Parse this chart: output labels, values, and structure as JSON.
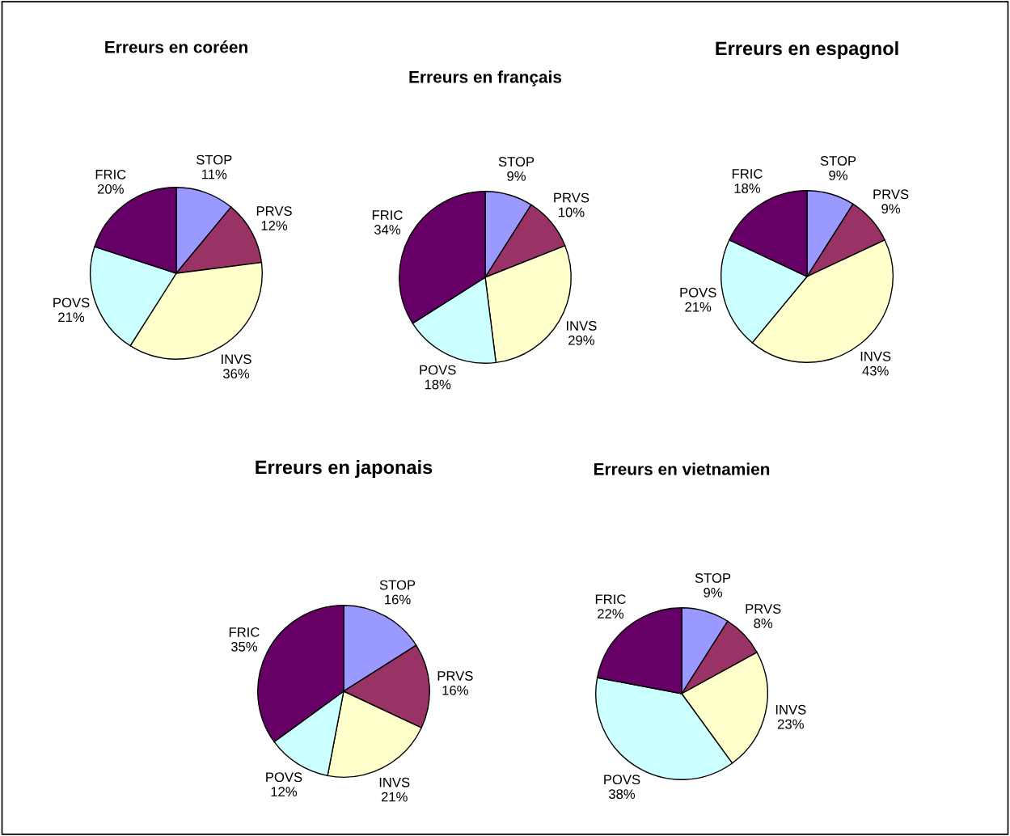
{
  "chart_data": [
    {
      "type": "pie",
      "title": "Erreurs en coréen",
      "categories": [
        "STOP",
        "PRVS",
        "INVS",
        "POVS",
        "FRIC"
      ],
      "values": [
        11,
        12,
        36,
        21,
        20
      ],
      "value_labels": [
        "11%",
        "12%",
        "36%",
        "21%",
        "20%"
      ],
      "colors": [
        "#9999ff",
        "#993366",
        "#ffffcc",
        "#ccffff",
        "#660066"
      ]
    },
    {
      "type": "pie",
      "title": "Erreurs en français",
      "categories": [
        "STOP",
        "PRVS",
        "INVS",
        "POVS",
        "FRIC"
      ],
      "values": [
        9,
        10,
        29,
        18,
        34
      ],
      "value_labels": [
        "9%",
        "10%",
        "29%",
        "18%",
        "34%"
      ],
      "colors": [
        "#9999ff",
        "#993366",
        "#ffffcc",
        "#ccffff",
        "#660066"
      ]
    },
    {
      "type": "pie",
      "title": "Erreurs en espagnol",
      "categories": [
        "STOP",
        "PRVS",
        "INVS",
        "POVS",
        "FRIC"
      ],
      "values": [
        9,
        9,
        43,
        21,
        18
      ],
      "value_labels": [
        "9%",
        "9%",
        "43%",
        "21%",
        "18%"
      ],
      "colors": [
        "#9999ff",
        "#993366",
        "#ffffcc",
        "#ccffff",
        "#660066"
      ]
    },
    {
      "type": "pie",
      "title": "Erreurs en japonais",
      "categories": [
        "STOP",
        "PRVS",
        "INVS",
        "POVS",
        "FRIC"
      ],
      "values": [
        16,
        16,
        21,
        12,
        35
      ],
      "value_labels": [
        "16%",
        "16%",
        "21%",
        "12%",
        "35%"
      ],
      "colors": [
        "#9999ff",
        "#993366",
        "#ffffcc",
        "#ccffff",
        "#660066"
      ]
    },
    {
      "type": "pie",
      "title": "Erreurs en vietnamien",
      "categories": [
        "STOP",
        "PRVS",
        "INVS",
        "POVS",
        "FRIC"
      ],
      "values": [
        9,
        8,
        23,
        38,
        22
      ],
      "value_labels": [
        "9%",
        "8%",
        "23%",
        "38%",
        "22%"
      ],
      "colors": [
        "#9999ff",
        "#993366",
        "#ffffcc",
        "#ccffff",
        "#660066"
      ]
    }
  ]
}
